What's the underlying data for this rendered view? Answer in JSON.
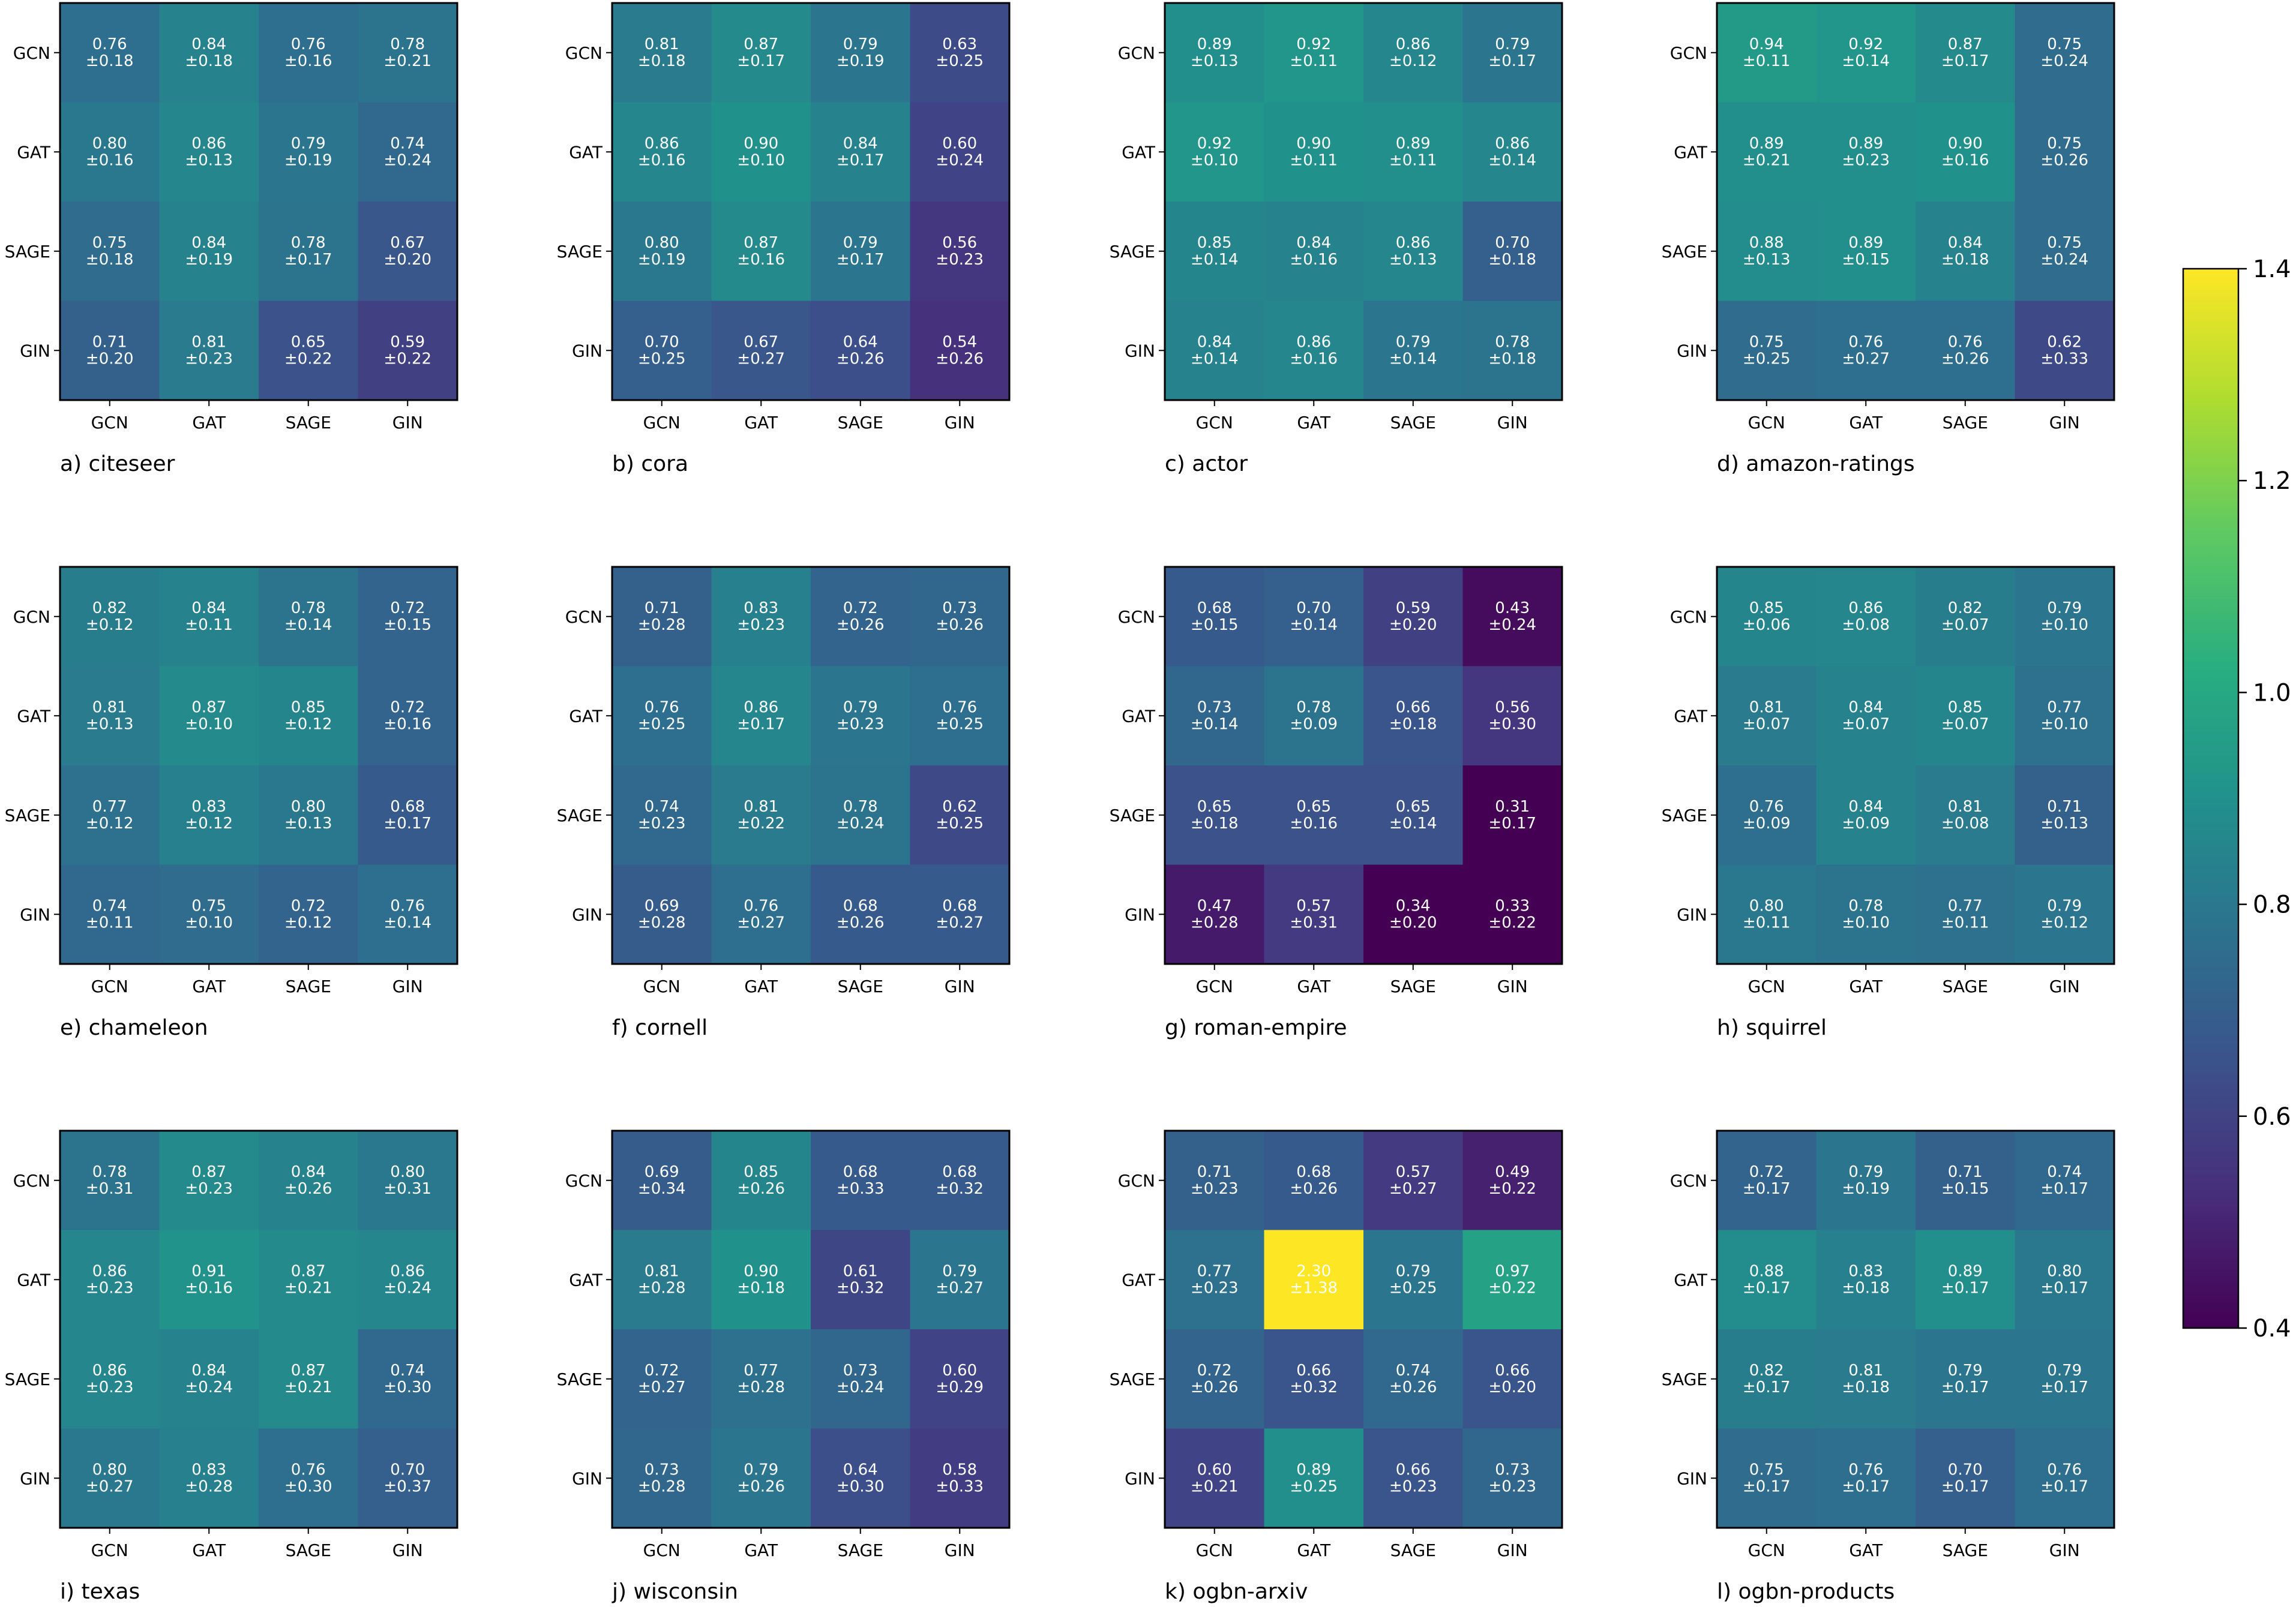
{
  "chart_data": {
    "type": "heatmap",
    "models": [
      "GCN",
      "GAT",
      "SAGE",
      "GIN"
    ],
    "colorbar": {
      "colormap": "viridis",
      "range": [
        0.4,
        1.4
      ],
      "ticks": [
        "0.4",
        "0.6",
        "0.8",
        "1.0",
        "1.2",
        "1.4"
      ]
    },
    "panels": [
      {
        "title": "a) citeseer",
        "mean": [
          [
            0.76,
            0.84,
            0.76,
            0.78
          ],
          [
            0.8,
            0.86,
            0.79,
            0.74
          ],
          [
            0.75,
            0.84,
            0.78,
            0.67
          ],
          [
            0.71,
            0.81,
            0.65,
            0.59
          ]
        ],
        "cells": [
          [
            "0.76\n±0.18",
            "0.84\n±0.18",
            "0.76\n±0.16",
            "0.78\n±0.21"
          ],
          [
            "0.80\n±0.16",
            "0.86\n±0.13",
            "0.79\n±0.19",
            "0.74\n±0.24"
          ],
          [
            "0.75\n±0.18",
            "0.84\n±0.19",
            "0.78\n±0.17",
            "0.67\n±0.20"
          ],
          [
            "0.71\n±0.20",
            "0.81\n±0.23",
            "0.65\n±0.22",
            "0.59\n±0.22"
          ]
        ]
      },
      {
        "title": "b) cora",
        "mean": [
          [
            0.81,
            0.87,
            0.79,
            0.63
          ],
          [
            0.86,
            0.9,
            0.84,
            0.6
          ],
          [
            0.8,
            0.87,
            0.79,
            0.56
          ],
          [
            0.7,
            0.67,
            0.64,
            0.54
          ]
        ],
        "cells": [
          [
            "0.81\n±0.18",
            "0.87\n±0.17",
            "0.79\n±0.19",
            "0.63\n±0.25"
          ],
          [
            "0.86\n±0.16",
            "0.90\n±0.10",
            "0.84\n±0.17",
            "0.60\n±0.24"
          ],
          [
            "0.80\n±0.19",
            "0.87\n±0.16",
            "0.79\n±0.17",
            "0.56\n±0.23"
          ],
          [
            "0.70\n±0.25",
            "0.67\n±0.27",
            "0.64\n±0.26",
            "0.54\n±0.26"
          ]
        ]
      },
      {
        "title": "c) actor",
        "mean": [
          [
            0.89,
            0.92,
            0.86,
            0.79
          ],
          [
            0.92,
            0.9,
            0.89,
            0.86
          ],
          [
            0.85,
            0.84,
            0.86,
            0.7
          ],
          [
            0.84,
            0.86,
            0.79,
            0.78
          ]
        ],
        "cells": [
          [
            "0.89\n±0.13",
            "0.92\n±0.11",
            "0.86\n±0.12",
            "0.79\n±0.17"
          ],
          [
            "0.92\n±0.10",
            "0.90\n±0.11",
            "0.89\n±0.11",
            "0.86\n±0.14"
          ],
          [
            "0.85\n±0.14",
            "0.84\n±0.16",
            "0.86\n±0.13",
            "0.70\n±0.18"
          ],
          [
            "0.84\n±0.14",
            "0.86\n±0.16",
            "0.79\n±0.14",
            "0.78\n±0.18"
          ]
        ]
      },
      {
        "title": "d) amazon-ratings",
        "mean": [
          [
            0.94,
            0.92,
            0.87,
            0.75
          ],
          [
            0.89,
            0.89,
            0.9,
            0.75
          ],
          [
            0.88,
            0.89,
            0.84,
            0.75
          ],
          [
            0.75,
            0.76,
            0.76,
            0.62
          ]
        ],
        "cells": [
          [
            "0.94\n±0.11",
            "0.92\n±0.14",
            "0.87\n±0.17",
            "0.75\n±0.24"
          ],
          [
            "0.89\n±0.21",
            "0.89\n±0.23",
            "0.90\n±0.16",
            "0.75\n±0.26"
          ],
          [
            "0.88\n±0.13",
            "0.89\n±0.15",
            "0.84\n±0.18",
            "0.75\n±0.24"
          ],
          [
            "0.75\n±0.25",
            "0.76\n±0.27",
            "0.76\n±0.26",
            "0.62\n±0.33"
          ]
        ]
      },
      {
        "title": "e) chameleon",
        "mean": [
          [
            0.82,
            0.84,
            0.78,
            0.72
          ],
          [
            0.81,
            0.87,
            0.85,
            0.72
          ],
          [
            0.77,
            0.83,
            0.8,
            0.68
          ],
          [
            0.74,
            0.75,
            0.72,
            0.76
          ]
        ],
        "cells": [
          [
            "0.82\n±0.12",
            "0.84\n±0.11",
            "0.78\n±0.14",
            "0.72\n±0.15"
          ],
          [
            "0.81\n±0.13",
            "0.87\n±0.10",
            "0.85\n±0.12",
            "0.72\n±0.16"
          ],
          [
            "0.77\n±0.12",
            "0.83\n±0.12",
            "0.80\n±0.13",
            "0.68\n±0.17"
          ],
          [
            "0.74\n±0.11",
            "0.75\n±0.10",
            "0.72\n±0.12",
            "0.76\n±0.14"
          ]
        ]
      },
      {
        "title": "f) cornell",
        "mean": [
          [
            0.71,
            0.83,
            0.72,
            0.73
          ],
          [
            0.76,
            0.86,
            0.79,
            0.76
          ],
          [
            0.74,
            0.81,
            0.78,
            0.62
          ],
          [
            0.69,
            0.76,
            0.68,
            0.68
          ]
        ],
        "cells": [
          [
            "0.71\n±0.28",
            "0.83\n±0.23",
            "0.72\n±0.26",
            "0.73\n±0.26"
          ],
          [
            "0.76\n±0.25",
            "0.86\n±0.17",
            "0.79\n±0.23",
            "0.76\n±0.25"
          ],
          [
            "0.74\n±0.23",
            "0.81\n±0.22",
            "0.78\n±0.24",
            "0.62\n±0.25"
          ],
          [
            "0.69\n±0.28",
            "0.76\n±0.27",
            "0.68\n±0.26",
            "0.68\n±0.27"
          ]
        ]
      },
      {
        "title": "g) roman-empire",
        "mean": [
          [
            0.68,
            0.7,
            0.59,
            0.43
          ],
          [
            0.73,
            0.78,
            0.66,
            0.56
          ],
          [
            0.65,
            0.65,
            0.65,
            0.31
          ],
          [
            0.47,
            0.57,
            0.34,
            0.33
          ]
        ],
        "cells": [
          [
            "0.68\n±0.15",
            "0.70\n±0.14",
            "0.59\n±0.20",
            "0.43\n±0.24"
          ],
          [
            "0.73\n±0.14",
            "0.78\n±0.09",
            "0.66\n±0.18",
            "0.56\n±0.30"
          ],
          [
            "0.65\n±0.18",
            "0.65\n±0.16",
            "0.65\n±0.14",
            "0.31\n±0.17"
          ],
          [
            "0.47\n±0.28",
            "0.57\n±0.31",
            "0.34\n±0.20",
            "0.33\n±0.22"
          ]
        ]
      },
      {
        "title": "h) squirrel",
        "mean": [
          [
            0.85,
            0.86,
            0.82,
            0.79
          ],
          [
            0.81,
            0.84,
            0.85,
            0.77
          ],
          [
            0.76,
            0.84,
            0.81,
            0.71
          ],
          [
            0.8,
            0.78,
            0.77,
            0.79
          ]
        ],
        "cells": [
          [
            "0.85\n±0.06",
            "0.86\n±0.08",
            "0.82\n±0.07",
            "0.79\n±0.10"
          ],
          [
            "0.81\n±0.07",
            "0.84\n±0.07",
            "0.85\n±0.07",
            "0.77\n±0.10"
          ],
          [
            "0.76\n±0.09",
            "0.84\n±0.09",
            "0.81\n±0.08",
            "0.71\n±0.13"
          ],
          [
            "0.80\n±0.11",
            "0.78\n±0.10",
            "0.77\n±0.11",
            "0.79\n±0.12"
          ]
        ]
      },
      {
        "title": "i) texas",
        "mean": [
          [
            0.78,
            0.87,
            0.84,
            0.8
          ],
          [
            0.86,
            0.91,
            0.87,
            0.86
          ],
          [
            0.86,
            0.84,
            0.87,
            0.74
          ],
          [
            0.8,
            0.83,
            0.76,
            0.7
          ]
        ],
        "cells": [
          [
            "0.78\n±0.31",
            "0.87\n±0.23",
            "0.84\n±0.26",
            "0.80\n±0.31"
          ],
          [
            "0.86\n±0.23",
            "0.91\n±0.16",
            "0.87\n±0.21",
            "0.86\n±0.24"
          ],
          [
            "0.86\n±0.23",
            "0.84\n±0.24",
            "0.87\n±0.21",
            "0.74\n±0.30"
          ],
          [
            "0.80\n±0.27",
            "0.83\n±0.28",
            "0.76\n±0.30",
            "0.70\n±0.37"
          ]
        ]
      },
      {
        "title": "j) wisconsin",
        "mean": [
          [
            0.69,
            0.85,
            0.68,
            0.68
          ],
          [
            0.81,
            0.9,
            0.61,
            0.79
          ],
          [
            0.72,
            0.77,
            0.73,
            0.6
          ],
          [
            0.73,
            0.79,
            0.64,
            0.58
          ]
        ],
        "cells": [
          [
            "0.69\n±0.34",
            "0.85\n±0.26",
            "0.68\n±0.33",
            "0.68\n±0.32"
          ],
          [
            "0.81\n±0.28",
            "0.90\n±0.18",
            "0.61\n±0.32",
            "0.79\n±0.27"
          ],
          [
            "0.72\n±0.27",
            "0.77\n±0.28",
            "0.73\n±0.24",
            "0.60\n±0.29"
          ],
          [
            "0.73\n±0.28",
            "0.79\n±0.26",
            "0.64\n±0.30",
            "0.58\n±0.33"
          ]
        ]
      },
      {
        "title": "k) ogbn-arxiv",
        "mean": [
          [
            0.71,
            0.68,
            0.57,
            0.49
          ],
          [
            0.77,
            2.3,
            0.79,
            0.97
          ],
          [
            0.72,
            0.66,
            0.74,
            0.66
          ],
          [
            0.6,
            0.89,
            0.66,
            0.73
          ]
        ],
        "cells": [
          [
            "0.71\n±0.23",
            "0.68\n±0.26",
            "0.57\n±0.27",
            "0.49\n±0.22"
          ],
          [
            "0.77\n±0.23",
            "2.30\n±1.38",
            "0.79\n±0.25",
            "0.97\n±0.22"
          ],
          [
            "0.72\n±0.26",
            "0.66\n±0.32",
            "0.74\n±0.26",
            "0.66\n±0.20"
          ],
          [
            "0.60\n±0.21",
            "0.89\n±0.25",
            "0.66\n±0.23",
            "0.73\n±0.23"
          ]
        ]
      },
      {
        "title": "l) ogbn-products",
        "mean": [
          [
            0.72,
            0.79,
            0.71,
            0.74
          ],
          [
            0.88,
            0.83,
            0.89,
            0.8
          ],
          [
            0.82,
            0.81,
            0.79,
            0.79
          ],
          [
            0.75,
            0.76,
            0.7,
            0.76
          ]
        ],
        "cells": [
          [
            "0.72\n±0.17",
            "0.79\n±0.19",
            "0.71\n±0.15",
            "0.74\n±0.17"
          ],
          [
            "0.88\n±0.17",
            "0.83\n±0.18",
            "0.89\n±0.17",
            "0.80\n±0.17"
          ],
          [
            "0.82\n±0.17",
            "0.81\n±0.18",
            "0.79\n±0.17",
            "0.79\n±0.17"
          ],
          [
            "0.75\n±0.17",
            "0.76\n±0.17",
            "0.70\n±0.17",
            "0.76\n±0.17"
          ]
        ]
      }
    ]
  }
}
